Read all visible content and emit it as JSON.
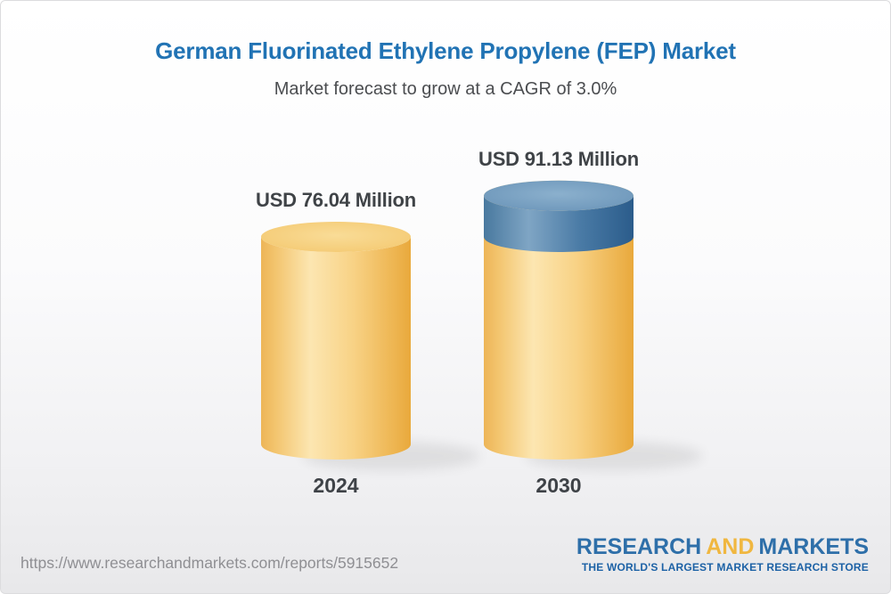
{
  "header": {
    "title": "German Fluorinated Ethylene Propylene (FEP) Market",
    "subtitle": "Market forecast to grow at a CAGR of 3.0%"
  },
  "chart_data": {
    "type": "bar",
    "style": "3d-cylinder",
    "title": "German Fluorinated Ethylene Propylene (FEP) Market",
    "subtitle": "Market forecast to grow at a CAGR of 3.0%",
    "unit": "USD Million",
    "cagr": "3.0%",
    "categories": [
      "2024",
      "2030"
    ],
    "values": [
      76.04,
      91.13
    ],
    "value_labels": [
      "USD 76.04 Million",
      "USD 91.13 Million"
    ],
    "base_value": 76.04,
    "legend": "none",
    "axes": "none",
    "colors": {
      "body_gradient": [
        [
          0,
          "#edb557"
        ],
        [
          0.1,
          "#f3c56f"
        ],
        [
          0.33,
          "#fce6b1"
        ],
        [
          0.62,
          "#f8d285"
        ],
        [
          1,
          "#e9a93c"
        ]
      ],
      "top_gradient": [
        [
          0,
          "#f9dc97"
        ],
        [
          0.7,
          "#f5cd79"
        ],
        [
          1,
          "#f2c466"
        ]
      ],
      "growth_body_gradient": [
        [
          0,
          "#49799f"
        ],
        [
          0.3,
          "#7fa5c4"
        ],
        [
          0.65,
          "#497aa5"
        ],
        [
          1,
          "#2b5c8b"
        ]
      ],
      "growth_top_gradient": [
        [
          0,
          "#8bb0cd"
        ],
        [
          0.75,
          "#7099bc"
        ],
        [
          1,
          "#6088ae"
        ]
      ],
      "shadow": "#000000"
    }
  },
  "footer": {
    "url": "https://www.researchandmarkets.com/reports/5915652",
    "logo": {
      "word1": "RESEARCH",
      "word2": "AND",
      "word3": "MARKETS",
      "tagline": "THE WORLD'S LARGEST MARKET RESEARCH STORE"
    }
  }
}
